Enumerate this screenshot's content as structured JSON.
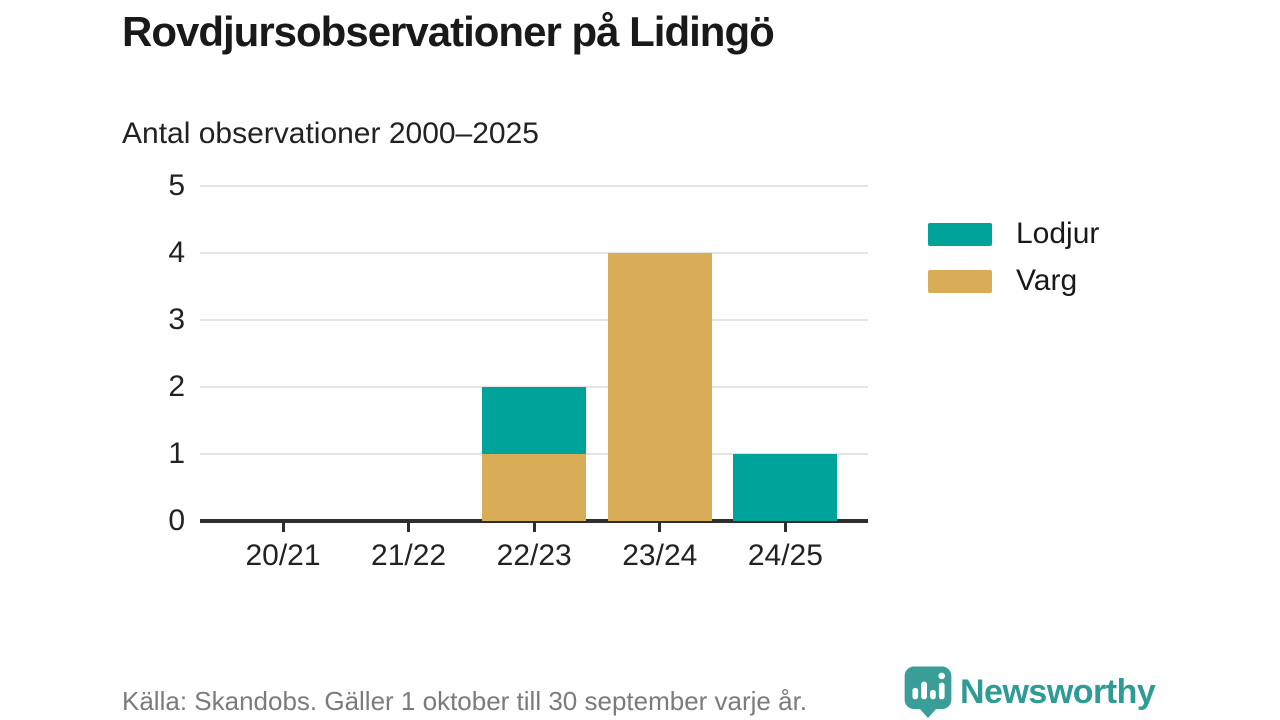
{
  "header": {
    "title": "Rovdjursobservationer på Lidingö",
    "subtitle": "Antal observationer 2000–2025"
  },
  "chart_data": {
    "type": "bar",
    "stacked": true,
    "title": "Rovdjursobservationer på Lidingö",
    "subtitle": "Antal observationer 2000–2025",
    "categories": [
      "20/21",
      "21/22",
      "22/23",
      "23/24",
      "24/25"
    ],
    "series": [
      {
        "name": "Lodjur",
        "color": "#00a39a",
        "values": [
          0,
          0,
          1,
          0,
          1
        ]
      },
      {
        "name": "Varg",
        "color": "#d9ac58",
        "values": [
          0,
          0,
          1,
          4,
          0
        ]
      }
    ],
    "stack_bottom_to_top": [
      "Varg",
      "Lodjur"
    ],
    "xlabel": "",
    "ylabel": "",
    "ylim": [
      0,
      5
    ],
    "yticks": [
      0,
      1,
      2,
      3,
      4,
      5
    ],
    "grid": true,
    "legend_position": "right"
  },
  "footer": {
    "source": "Källa: Skandobs. Gäller 1 oktober till 30 september varje år.",
    "brand": "Newsworthy"
  },
  "colors": {
    "lodjur_teal": "#00a39a",
    "varg_gold": "#d9ac58",
    "brand_teal": "#2f9b95",
    "axis": "#2e2e2e",
    "gridline": "#e4e4e4"
  }
}
